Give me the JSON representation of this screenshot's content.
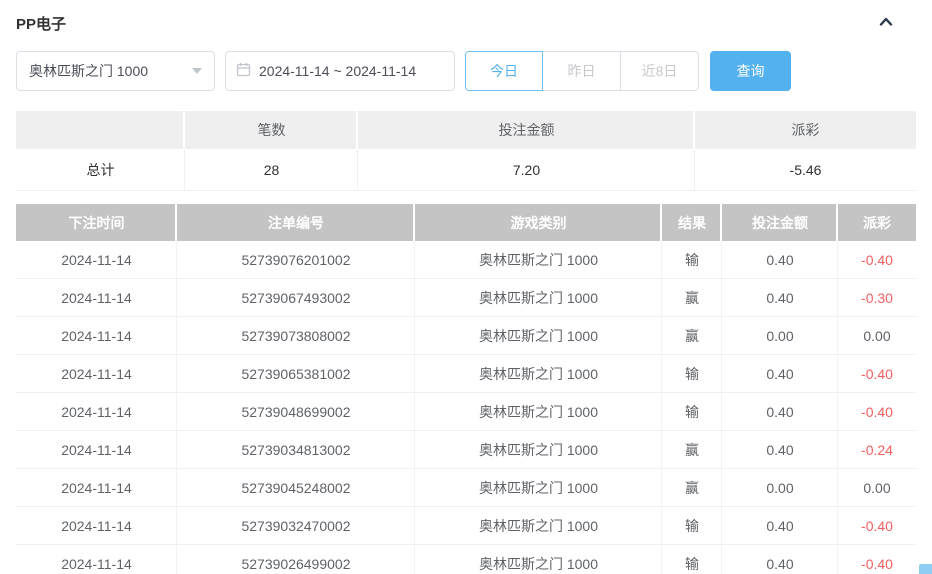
{
  "header": {
    "title": "PP电子"
  },
  "filters": {
    "game_select": {
      "value": "奥林匹斯之门 1000"
    },
    "date_range": {
      "value": "2024-11-14 ~ 2024-11-14"
    },
    "quick_buttons": [
      {
        "label": "今日",
        "active": true
      },
      {
        "label": "昨日",
        "active": false
      },
      {
        "label": "近8日",
        "active": false
      }
    ],
    "search_label": "查询"
  },
  "summary": {
    "columns": [
      "",
      "笔数",
      "投注金额",
      "派彩"
    ],
    "row_label": "总计",
    "count": "28",
    "bet_amount": "7.20",
    "payout": "-5.46"
  },
  "table": {
    "columns": [
      "下注时间",
      "注单编号",
      "游戏类别",
      "结果",
      "投注金额",
      "派彩"
    ],
    "rows": [
      [
        "2024-11-14",
        "52739076201002",
        "奥林匹斯之门 1000",
        "输",
        "0.40",
        "-0.40"
      ],
      [
        "2024-11-14",
        "52739067493002",
        "奥林匹斯之门 1000",
        "赢",
        "0.40",
        "-0.30"
      ],
      [
        "2024-11-14",
        "52739073808002",
        "奥林匹斯之门 1000",
        "赢",
        "0.00",
        "0.00"
      ],
      [
        "2024-11-14",
        "52739065381002",
        "奥林匹斯之门 1000",
        "输",
        "0.40",
        "-0.40"
      ],
      [
        "2024-11-14",
        "52739048699002",
        "奥林匹斯之门 1000",
        "输",
        "0.40",
        "-0.40"
      ],
      [
        "2024-11-14",
        "52739034813002",
        "奥林匹斯之门 1000",
        "赢",
        "0.40",
        "-0.24"
      ],
      [
        "2024-11-14",
        "52739045248002",
        "奥林匹斯之门 1000",
        "赢",
        "0.00",
        "0.00"
      ],
      [
        "2024-11-14",
        "52739032470002",
        "奥林匹斯之门 1000",
        "输",
        "0.40",
        "-0.40"
      ],
      [
        "2024-11-14",
        "52739026499002",
        "奥林匹斯之门 1000",
        "输",
        "0.40",
        "-0.40"
      ]
    ]
  },
  "colors": {
    "accent": "#54b1f0",
    "negative": "#f25f5f",
    "table_header_bg": "#c4c4c4",
    "summary_header_bg": "#efefef"
  }
}
